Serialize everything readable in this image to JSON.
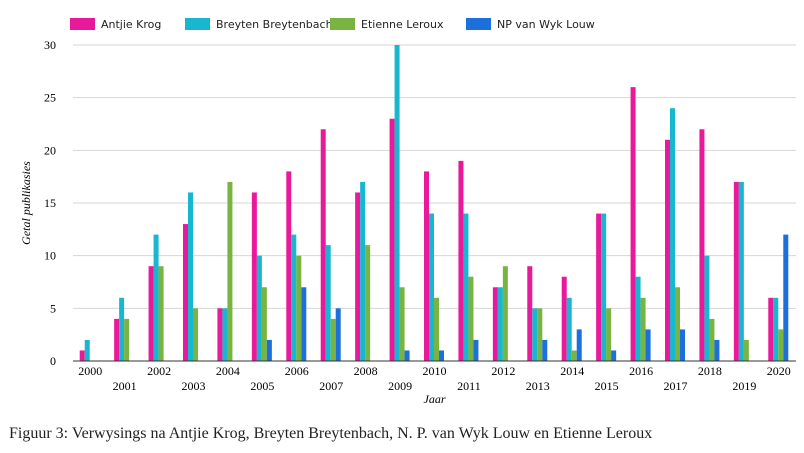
{
  "figure": {
    "caption": "Figuur 3: Verwysings na Antjie Krog, Breyten Breytenbach, N. P. van Wyk Louw en Etienne Leroux"
  },
  "chart_data": {
    "type": "bar",
    "xlabel": "Jaar",
    "ylabel": "Getal publikasies",
    "ylim": [
      0,
      30
    ],
    "yticks": [
      0,
      5,
      10,
      15,
      20,
      25,
      30
    ],
    "grid": true,
    "legend_position": "top-left",
    "categories": [
      "2000",
      "2001",
      "2002",
      "2003",
      "2004",
      "2005",
      "2006",
      "2007",
      "2008",
      "2009",
      "2010",
      "2011",
      "2012",
      "2013",
      "2014",
      "2015",
      "2016",
      "2017",
      "2018",
      "2019",
      "2020"
    ],
    "series": [
      {
        "name": "Antjie Krog",
        "color": "#e8199a",
        "values": [
          1,
          4,
          9,
          13,
          5,
          16,
          18,
          22,
          16,
          23,
          18,
          19,
          7,
          9,
          8,
          14,
          26,
          21,
          22,
          17,
          6
        ]
      },
      {
        "name": "Breyten Breytenbach",
        "color": "#19b6cf",
        "values": [
          2,
          6,
          12,
          16,
          5,
          10,
          12,
          11,
          17,
          30,
          14,
          14,
          7,
          5,
          6,
          14,
          8,
          24,
          10,
          17,
          6
        ]
      },
      {
        "name": "Etienne Leroux",
        "color": "#79b342",
        "values": [
          0,
          4,
          9,
          5,
          17,
          7,
          10,
          4,
          11,
          7,
          6,
          8,
          9,
          5,
          1,
          5,
          6,
          7,
          4,
          2,
          3
        ]
      },
      {
        "name": "NP van Wyk Louw",
        "color": "#1d6fdc",
        "values": [
          0,
          0,
          0,
          0,
          0,
          2,
          7,
          5,
          0,
          1,
          1,
          2,
          0,
          2,
          3,
          1,
          3,
          3,
          2,
          0,
          12
        ]
      }
    ]
  }
}
